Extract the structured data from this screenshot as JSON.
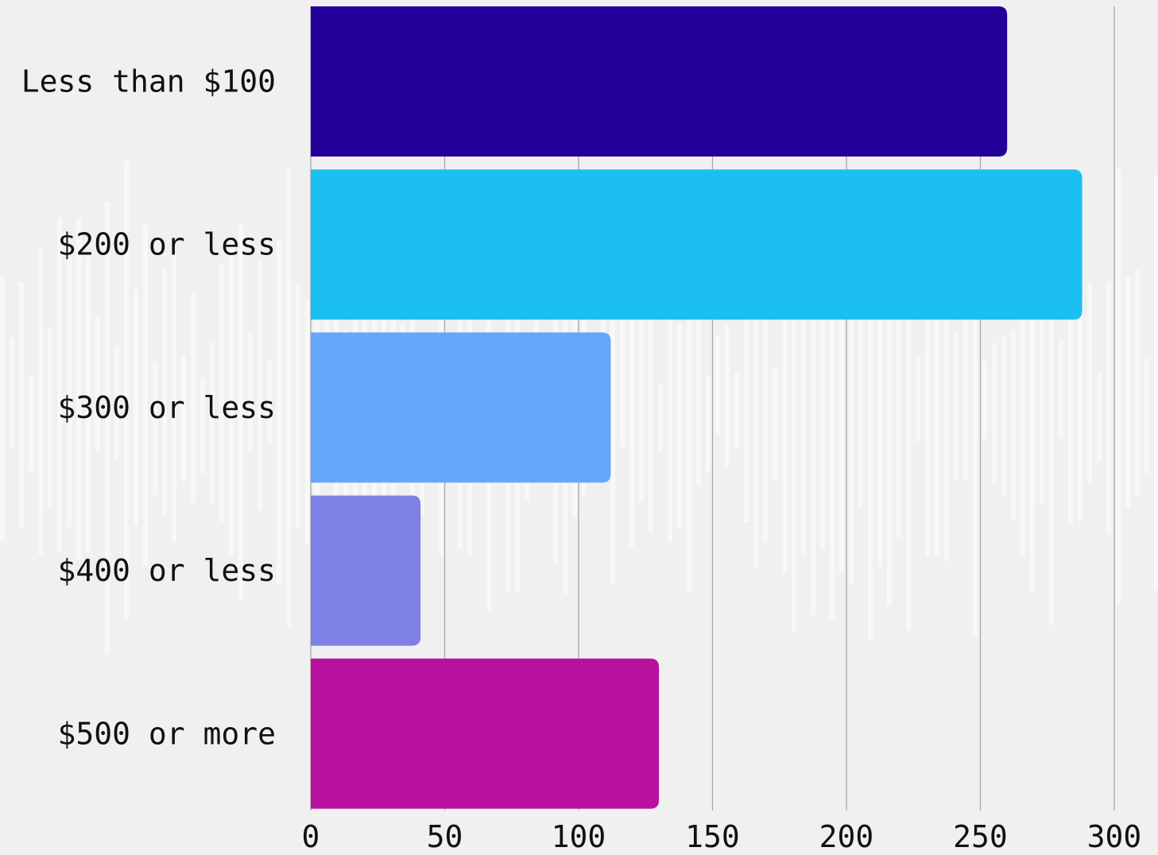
{
  "chart_data": {
    "type": "bar",
    "orientation": "horizontal",
    "categories": [
      "Less than $100",
      "$200 or less",
      "$300 or less",
      "$400 or less",
      "$500 or more"
    ],
    "values": [
      260,
      288,
      112,
      41,
      130
    ],
    "colors": [
      "#23009a",
      "#1bc0f0",
      "#64a6fa",
      "#7e80e6",
      "#b9129e"
    ],
    "xticks": [
      "0",
      "50",
      "100",
      "150",
      "200",
      "250",
      "300"
    ],
    "xlim": [
      0,
      300
    ],
    "grid": true,
    "legend": "none",
    "title": "",
    "xlabel": "",
    "ylabel": ""
  }
}
